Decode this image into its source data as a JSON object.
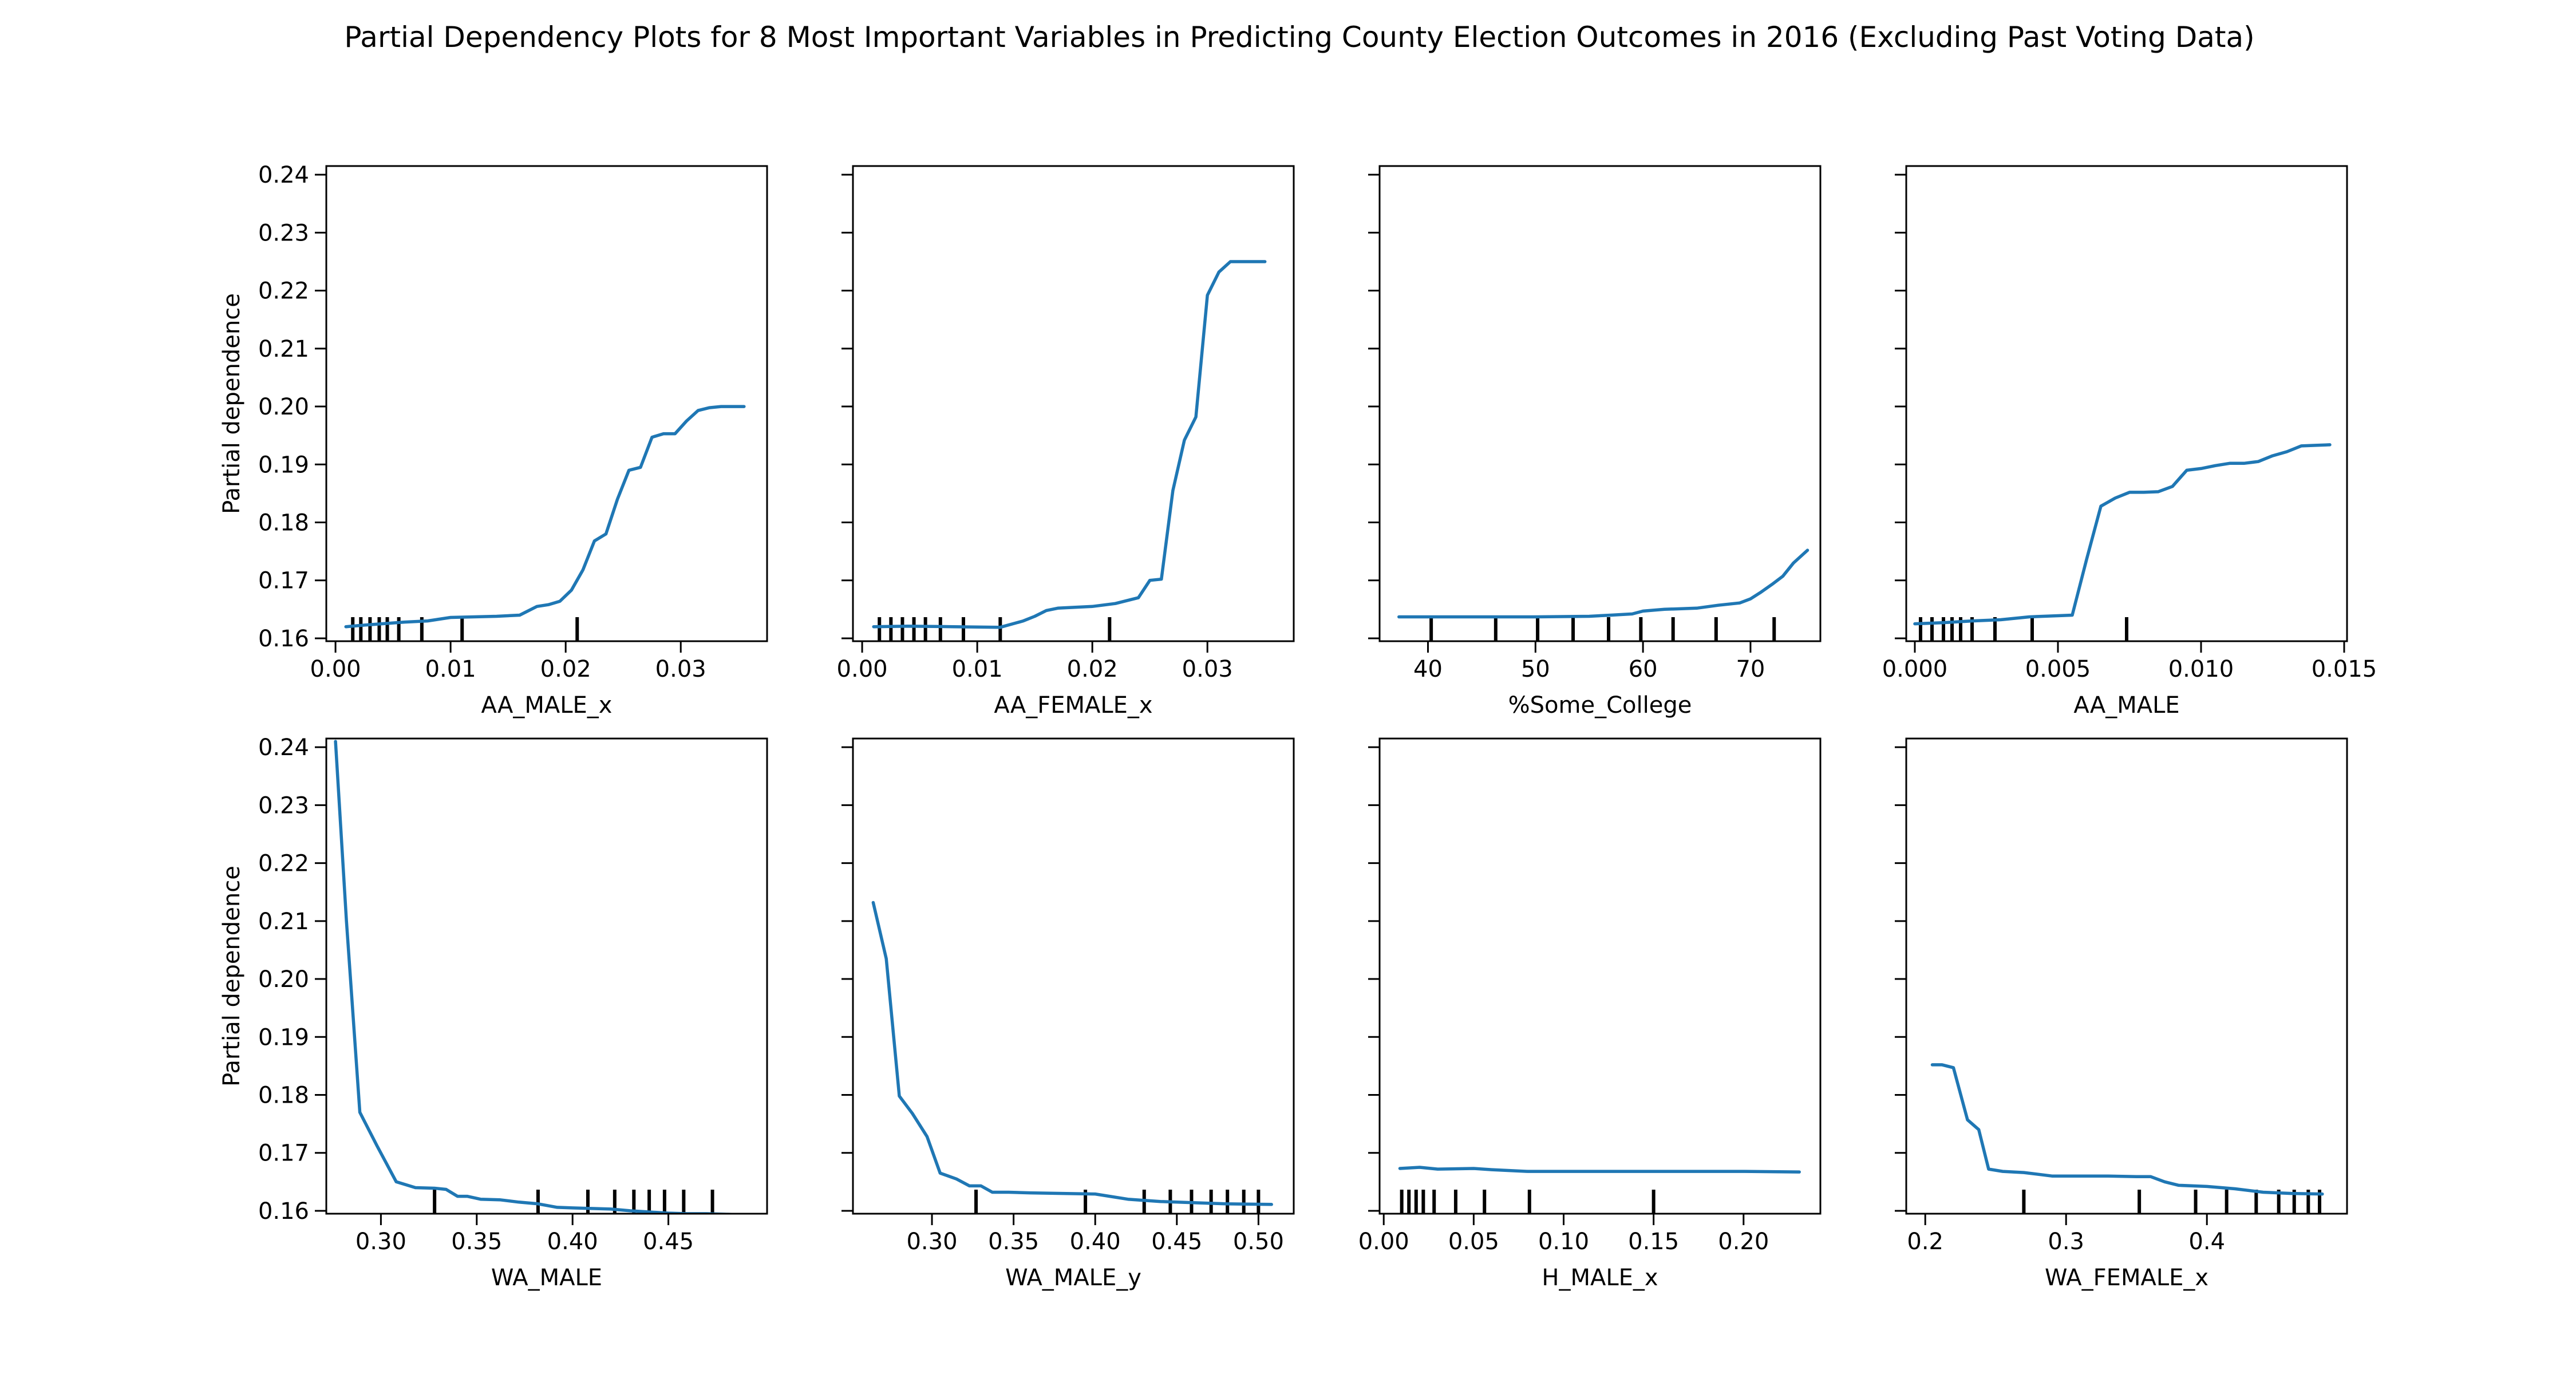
{
  "title": "Partial Dependency Plots for 8 Most Important Variables in Predicting County Election Outcomes in 2016 (Excluding Past Voting Data)",
  "chart_data": [
    {
      "type": "line",
      "xlabel": "AA_MALE_x",
      "ylabel": "Partial dependence",
      "xlim": [
        -0.0008,
        0.0375
      ],
      "ylim": [
        0.1595,
        0.2415
      ],
      "xticks": [
        0.0,
        0.01,
        0.02,
        0.03
      ],
      "xtick_labels": [
        "0.00",
        "0.01",
        "0.02",
        "0.03"
      ],
      "yticks": [
        0.16,
        0.17,
        0.18,
        0.19,
        0.2,
        0.21,
        0.22,
        0.23,
        0.24
      ],
      "ytick_labels": [
        "0.16",
        "0.17",
        "0.18",
        "0.19",
        "0.20",
        "0.21",
        "0.22",
        "0.23",
        "0.24"
      ],
      "x": [
        0.0009,
        0.002,
        0.004,
        0.006,
        0.008,
        0.01,
        0.012,
        0.014,
        0.016,
        0.0175,
        0.0185,
        0.0195,
        0.0205,
        0.0215,
        0.0225,
        0.0235,
        0.0245,
        0.0255,
        0.0265,
        0.0275,
        0.0285,
        0.0295,
        0.0305,
        0.0315,
        0.0325,
        0.0335,
        0.0345,
        0.0355
      ],
      "y": [
        0.162,
        0.1622,
        0.1625,
        0.1628,
        0.163,
        0.1636,
        0.1637,
        0.1638,
        0.164,
        0.1655,
        0.1658,
        0.1664,
        0.1683,
        0.1718,
        0.1768,
        0.178,
        0.184,
        0.189,
        0.1895,
        0.1947,
        0.1953,
        0.1953,
        0.1975,
        0.1993,
        0.1998,
        0.2,
        0.2,
        0.2
      ],
      "rug": [
        0.0015,
        0.0022,
        0.003,
        0.0038,
        0.0045,
        0.0055,
        0.0075,
        0.011,
        0.021
      ]
    },
    {
      "type": "line",
      "xlabel": "AA_FEMALE_x",
      "ylabel": "",
      "xlim": [
        -0.0008,
        0.0375
      ],
      "ylim": [
        0.1595,
        0.2415
      ],
      "xticks": [
        0.0,
        0.01,
        0.02,
        0.03
      ],
      "xtick_labels": [
        "0.00",
        "0.01",
        "0.02",
        "0.03"
      ],
      "yticks": [
        0.16,
        0.17,
        0.18,
        0.19,
        0.2,
        0.21,
        0.22,
        0.23,
        0.24
      ],
      "ytick_labels": [],
      "x": [
        0.001,
        0.004,
        0.008,
        0.012,
        0.014,
        0.015,
        0.016,
        0.017,
        0.018,
        0.02,
        0.022,
        0.024,
        0.025,
        0.026,
        0.027,
        0.028,
        0.029,
        0.03,
        0.031,
        0.032,
        0.033,
        0.034,
        0.035
      ],
      "y": [
        0.162,
        0.1621,
        0.162,
        0.1619,
        0.163,
        0.1638,
        0.1648,
        0.1652,
        0.1653,
        0.1655,
        0.166,
        0.167,
        0.17,
        0.1702,
        0.1855,
        0.1942,
        0.1982,
        0.2192,
        0.2232,
        0.225,
        0.225,
        0.225,
        0.225
      ],
      "rug": [
        0.0015,
        0.0025,
        0.0035,
        0.0045,
        0.0055,
        0.0068,
        0.0088,
        0.012,
        0.0215
      ]
    },
    {
      "type": "line",
      "xlabel": "%Some_College",
      "ylabel": "",
      "xlim": [
        35.5,
        76.5
      ],
      "ylim": [
        0.1595,
        0.2415
      ],
      "xticks": [
        40,
        50,
        60,
        70
      ],
      "xtick_labels": [
        "40",
        "50",
        "60",
        "70"
      ],
      "yticks": [
        0.16,
        0.17,
        0.18,
        0.19,
        0.2,
        0.21,
        0.22,
        0.23,
        0.24
      ],
      "ytick_labels": [],
      "x": [
        37.3,
        45,
        50,
        55,
        57,
        59,
        60,
        62,
        65,
        67,
        69,
        70,
        71,
        72,
        73,
        74,
        75.3
      ],
      "y": [
        0.1637,
        0.1637,
        0.1637,
        0.1638,
        0.164,
        0.1642,
        0.1647,
        0.165,
        0.1652,
        0.1657,
        0.1661,
        0.1668,
        0.168,
        0.1693,
        0.1707,
        0.173,
        0.1752
      ],
      "rug": [
        40.3,
        46.3,
        50.2,
        53.5,
        56.8,
        59.8,
        62.8,
        66.8,
        72.2
      ]
    },
    {
      "type": "line",
      "xlabel": "AA_MALE",
      "ylabel": "",
      "xlim": [
        -0.0003,
        0.0151
      ],
      "ylim": [
        0.1595,
        0.2415
      ],
      "xticks": [
        0.0,
        0.005,
        0.01,
        0.015
      ],
      "xtick_labels": [
        "0.000",
        "0.005",
        "0.010",
        "0.015"
      ],
      "yticks": [
        0.16,
        0.17,
        0.18,
        0.19,
        0.2,
        0.21,
        0.22,
        0.23,
        0.24
      ],
      "ytick_labels": [],
      "x": [
        0.0,
        0.001,
        0.002,
        0.003,
        0.004,
        0.005,
        0.0055,
        0.006,
        0.0065,
        0.007,
        0.0075,
        0.008,
        0.0085,
        0.009,
        0.0095,
        0.01,
        0.0105,
        0.011,
        0.0115,
        0.012,
        0.0125,
        0.013,
        0.0135,
        0.014,
        0.0145
      ],
      "y": [
        0.1625,
        0.1627,
        0.163,
        0.1632,
        0.1637,
        0.1639,
        0.164,
        0.1736,
        0.1828,
        0.1842,
        0.1852,
        0.1852,
        0.1853,
        0.1862,
        0.189,
        0.1893,
        0.1898,
        0.1902,
        0.1902,
        0.1905,
        0.1915,
        0.1922,
        0.1932,
        0.1933,
        0.1934
      ],
      "rug": [
        0.0002,
        0.0006,
        0.001,
        0.0013,
        0.0016,
        0.002,
        0.0028,
        0.0041,
        0.0074
      ]
    },
    {
      "type": "line",
      "xlabel": "WA_MALE",
      "ylabel": "Partial dependence",
      "xlim": [
        0.2715,
        0.5015
      ],
      "ylim": [
        0.1595,
        0.2415
      ],
      "xticks": [
        0.3,
        0.35,
        0.4,
        0.45
      ],
      "xtick_labels": [
        "0.30",
        "0.35",
        "0.40",
        "0.45"
      ],
      "yticks": [
        0.16,
        0.17,
        0.18,
        0.19,
        0.2,
        0.21,
        0.22,
        0.23,
        0.24
      ],
      "ytick_labels": [
        "0.16",
        "0.17",
        "0.18",
        "0.19",
        "0.20",
        "0.21",
        "0.22",
        "0.23",
        "0.24"
      ],
      "x": [
        0.2763,
        0.282,
        0.289,
        0.298,
        0.308,
        0.318,
        0.328,
        0.334,
        0.34,
        0.345,
        0.352,
        0.362,
        0.372,
        0.382,
        0.392,
        0.4,
        0.41,
        0.42,
        0.43,
        0.44,
        0.45,
        0.46,
        0.47,
        0.48,
        0.49
      ],
      "y": [
        0.241,
        0.21,
        0.177,
        0.1712,
        0.165,
        0.164,
        0.1639,
        0.1637,
        0.1625,
        0.1625,
        0.162,
        0.1619,
        0.1615,
        0.1612,
        0.1606,
        0.1605,
        0.1604,
        0.1603,
        0.16,
        0.1598,
        0.1596,
        0.1595,
        0.1595,
        0.1594,
        0.1593
      ],
      "rug": [
        0.328,
        0.382,
        0.408,
        0.422,
        0.432,
        0.44,
        0.448,
        0.458,
        0.473
      ]
    },
    {
      "type": "line",
      "xlabel": "WA_MALE_y",
      "ylabel": "",
      "xlim": [
        0.2516,
        0.5216
      ],
      "ylim": [
        0.1595,
        0.2415
      ],
      "xticks": [
        0.3,
        0.35,
        0.4,
        0.45,
        0.5
      ],
      "xtick_labels": [
        "0.30",
        "0.35",
        "0.40",
        "0.45",
        "0.50"
      ],
      "yticks": [
        0.16,
        0.17,
        0.18,
        0.19,
        0.2,
        0.21,
        0.22,
        0.23,
        0.24
      ],
      "ytick_labels": [],
      "x": [
        0.264,
        0.272,
        0.28,
        0.288,
        0.297,
        0.305,
        0.315,
        0.323,
        0.33,
        0.337,
        0.347,
        0.36,
        0.38,
        0.4,
        0.42,
        0.44,
        0.46,
        0.48,
        0.508
      ],
      "y": [
        0.2132,
        0.2035,
        0.1798,
        0.1768,
        0.1728,
        0.1665,
        0.1655,
        0.1643,
        0.1643,
        0.1632,
        0.1632,
        0.1631,
        0.163,
        0.1629,
        0.162,
        0.1616,
        0.1614,
        0.1612,
        0.1611
      ],
      "rug": [
        0.327,
        0.394,
        0.43,
        0.446,
        0.459,
        0.471,
        0.481,
        0.491,
        0.5
      ]
    },
    {
      "type": "line",
      "xlabel": "H_MALE_x",
      "ylabel": "",
      "xlim": [
        -0.0023,
        0.2427
      ],
      "ylim": [
        0.1595,
        0.2415
      ],
      "xticks": [
        0.0,
        0.05,
        0.1,
        0.15,
        0.2
      ],
      "xtick_labels": [
        "0.00",
        "0.05",
        "0.10",
        "0.15",
        "0.20"
      ],
      "yticks": [
        0.16,
        0.17,
        0.18,
        0.19,
        0.2,
        0.21,
        0.22,
        0.23,
        0.24
      ],
      "ytick_labels": [],
      "x": [
        0.009,
        0.02,
        0.03,
        0.05,
        0.06,
        0.08,
        0.1,
        0.15,
        0.2,
        0.231
      ],
      "y": [
        0.1673,
        0.1675,
        0.1672,
        0.1673,
        0.1671,
        0.1668,
        0.1668,
        0.1668,
        0.1668,
        0.1667
      ],
      "rug": [
        0.01,
        0.014,
        0.018,
        0.022,
        0.028,
        0.04,
        0.056,
        0.081,
        0.15
      ]
    },
    {
      "type": "line",
      "xlabel": "WA_FEMALE_x",
      "ylabel": "",
      "xlim": [
        0.1865,
        0.4995
      ],
      "ylim": [
        0.1595,
        0.2415
      ],
      "xticks": [
        0.2,
        0.3,
        0.4
      ],
      "xtick_labels": [
        "0.2",
        "0.3",
        "0.4"
      ],
      "yticks": [
        0.16,
        0.17,
        0.18,
        0.19,
        0.2,
        0.21,
        0.22,
        0.23,
        0.24
      ],
      "ytick_labels": [],
      "x": [
        0.205,
        0.212,
        0.22,
        0.23,
        0.238,
        0.245,
        0.255,
        0.27,
        0.29,
        0.31,
        0.33,
        0.35,
        0.36,
        0.37,
        0.38,
        0.4,
        0.42,
        0.44,
        0.46,
        0.482
      ],
      "y": [
        0.1852,
        0.1852,
        0.1847,
        0.1757,
        0.174,
        0.1672,
        0.1668,
        0.1666,
        0.166,
        0.166,
        0.166,
        0.1659,
        0.1659,
        0.165,
        0.1644,
        0.1642,
        0.1638,
        0.1632,
        0.163,
        0.1629
      ],
      "rug": [
        0.27,
        0.352,
        0.392,
        0.414,
        0.435,
        0.451,
        0.462,
        0.472,
        0.48
      ]
    }
  ]
}
